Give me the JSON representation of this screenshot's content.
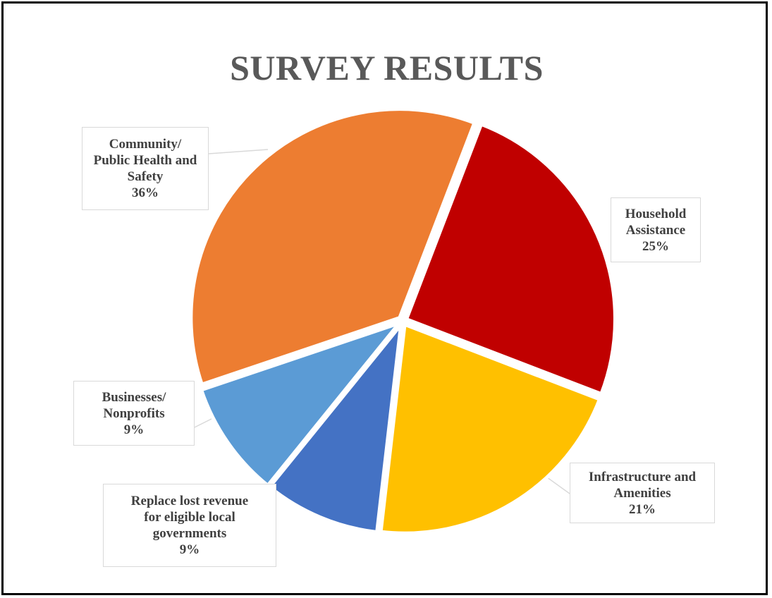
{
  "chart_data": {
    "type": "pie",
    "title": "SURVEY RESULTS",
    "slices": [
      {
        "label": "Household Assistance",
        "label_lines": [
          "Household",
          "Assistance"
        ],
        "value": 25,
        "value_label": "25%",
        "color": "#c00000"
      },
      {
        "label": "Infrastructure and Amenities",
        "label_lines": [
          "Infrastructure and",
          "Amenities"
        ],
        "value": 21,
        "value_label": "21%",
        "color": "#ffc000"
      },
      {
        "label": "Replace lost revenue for eligible local governments",
        "label_lines": [
          "Replace lost revenue",
          "for eligible local",
          "governments"
        ],
        "value": 9,
        "value_label": "9%",
        "color": "#4472c4"
      },
      {
        "label": "Businesses/ Nonprofits",
        "label_lines": [
          "Businesses/",
          "Nonprofits"
        ],
        "value": 9,
        "value_label": "9%",
        "color": "#5b9bd5"
      },
      {
        "label": "Community/ Public Health and Safety",
        "label_lines": [
          "Community/",
          "Public Health and",
          "Safety"
        ],
        "value": 36,
        "value_label": "36%",
        "color": "#ed7d31"
      }
    ],
    "legend": "none",
    "data_labels": "callout"
  }
}
